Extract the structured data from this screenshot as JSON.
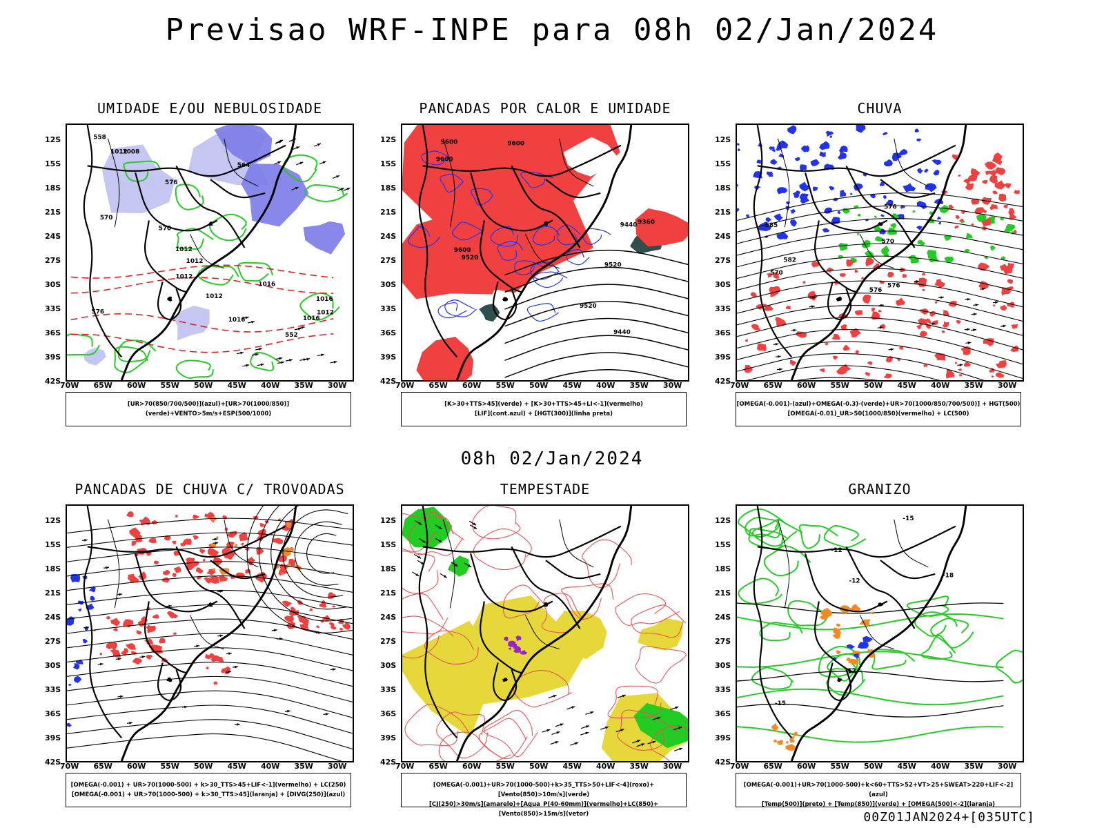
{
  "page": {
    "title": "Previsao WRF-INPE  para 08h 02/Jan/2024",
    "mid_title": "08h 02/Jan/2024",
    "footer": "00Z01JAN2024+[035UTC]"
  },
  "colors": {
    "blue_fill": "#7b7be8",
    "light_blue": "#b8b8f0",
    "green": "#22cc22",
    "red": "#f04040",
    "dark_teal": "#2f4f4f",
    "yellow": "#e6d83a",
    "orange": "#f08a24",
    "blue": "#2233ee",
    "purple": "#9922cc"
  },
  "axes": {
    "lat_ticks": [
      "12S",
      "15S",
      "18S",
      "21S",
      "24S",
      "27S",
      "30S",
      "33S",
      "36S",
      "39S",
      "42S"
    ],
    "lon_ticks": [
      "70W",
      "65W",
      "60W",
      "55W",
      "50W",
      "45W",
      "40W",
      "35W",
      "30W"
    ]
  },
  "panels": [
    {
      "id": "umidade",
      "title": "UMIDADE E/OU NEBULOSIDADE",
      "legend": [
        "[UR>70(850/700/500)](azul)+[UR>70(1000/850)](verde)+VENTO>5m/s+ESP(500/1000)"
      ],
      "labels": [
        "1012",
        "1012",
        "1012",
        "1016",
        "1016",
        "1008",
        "1016",
        "1012",
        "1012",
        "1012",
        "570",
        "576",
        "564",
        "558",
        "552",
        "576",
        "570",
        "1016"
      ]
    },
    {
      "id": "pancadas-calor",
      "title": "PANCADAS POR CALOR E UMIDADE",
      "legend": [
        "[K>30+TTS>45](verde) + [K>30+TTS>45+LI<-1](vermelho)",
        "[LIF](cont.azul) + [HGT(300)](linha preta)"
      ],
      "labels": [
        "9600",
        "9520",
        "9600",
        "9520",
        "9440",
        "9520",
        "9440",
        "9360",
        "9600",
        "9600"
      ]
    },
    {
      "id": "chuva",
      "title": "CHUVA",
      "legend": [
        "[OMEGA(-0.001)-(azul)+OMEGA(-0.3)-(verde)+UR>70(1000/850/700/500)] + HGT(500)",
        "[OMEGA(-0.01)_UR>50(1000/850)(vermelho) + LC(500)"
      ],
      "labels": [
        "582",
        "576",
        "570",
        "576",
        "576",
        "570",
        "585"
      ]
    },
    {
      "id": "pancadas-trovoadas",
      "title": "PANCADAS DE CHUVA C/ TROVOADAS",
      "legend": [
        "[OMEGA(-0.001) + UR>70(1000-500) + k>30_TTS>45+LIF<-1](vermelho) + LC(250)",
        "[OMEGA(-0.001) + UR>70(1000-500) + k>30_TTS>45](laranja) + [DIVG(250)](azul)"
      ],
      "labels": []
    },
    {
      "id": "tempestade",
      "title": "TEMPESTADE",
      "legend": [
        "[OMEGA(-0.001)+UR>70(1000-500)+k>35_TTS>50+LIF<-4](roxo)+[Vento(850)>10m/s](verde)",
        "[CJ(250)>30m/s](amarelo)+[Agua_P(40-60mm)](vermelho)+LC(850)+[Vento(850)>15m/s](vetor)"
      ],
      "labels": []
    },
    {
      "id": "granizo",
      "title": "GRANIZO",
      "legend": [
        "[OMEGA(-0.001)+UR>70(1000-500)+k<60+TTS>52+VT>25+SWEAT>220+LIF<-2](azul)",
        "[Temp(500)](preto) + [Temp(850)](verde) + [OMEGA(500)<-2](laranja)"
      ],
      "labels": [
        "-12",
        "-12",
        "-15",
        "-18",
        "-15",
        "-12"
      ]
    }
  ]
}
